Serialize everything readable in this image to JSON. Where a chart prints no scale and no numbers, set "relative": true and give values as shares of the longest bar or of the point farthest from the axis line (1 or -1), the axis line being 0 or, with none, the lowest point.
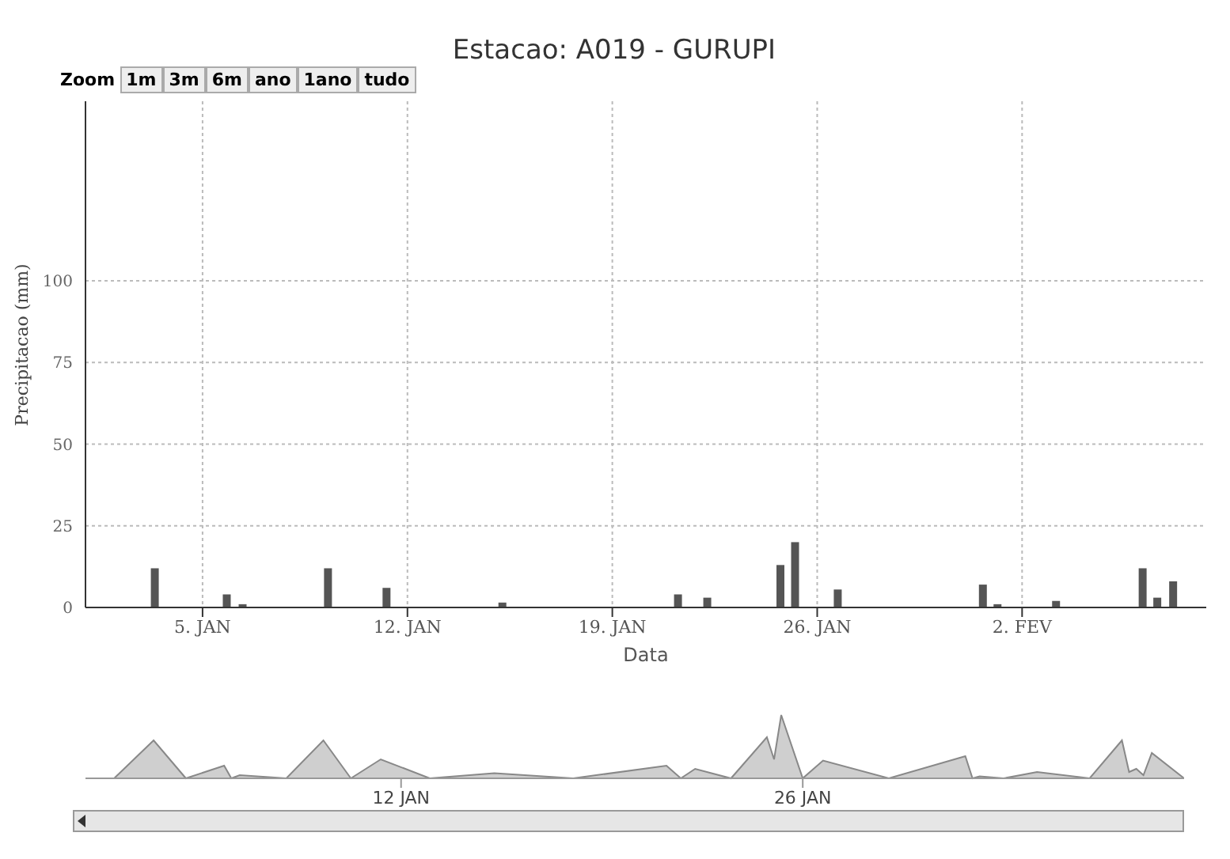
{
  "chart_data": [
    {
      "type": "bar",
      "title": "Estacao: A019 - GURUPI",
      "xlabel": "Data",
      "ylabel": "Precipitacao (mm)",
      "annotations": [
        "Zoom",
        "1m",
        "3m",
        "6m",
        "ano",
        "1ano",
        "tudo"
      ],
      "color": "#555555",
      "grid": true,
      "x": [
        "--01-03T09:00",
        "--01-05T20:00",
        "--01-06T09:00",
        "--01-09T07:00",
        "--01-11T07:00",
        "--01-15T06:00",
        "--01-21T06:00",
        "--01-22T06:00",
        "--01-24T18:00",
        "--01-25T06:00",
        "--01-26T17:00",
        "--01-31T16:00",
        "--02-01T04:00",
        "--02-03T04:00",
        "--02-06T03:00",
        "--02-06T15:00",
        "--02-07T04:00"
      ],
      "values": [
        12,
        4,
        1,
        12,
        6,
        1.5,
        4,
        3,
        13,
        20,
        5.5,
        7,
        1,
        2,
        12,
        3,
        8
      ],
      "xlim": [
        "--01-01T00:00",
        "--02-08T07:00"
      ],
      "xticks": [
        {
          "value": "--01-05",
          "label": "5. JAN"
        },
        {
          "value": "--01-12",
          "label": "12. JAN"
        },
        {
          "value": "--01-19",
          "label": "19. JAN"
        },
        {
          "value": "--01-26",
          "label": "26. JAN"
        },
        {
          "value": "--02-02",
          "label": "2. FEV"
        }
      ],
      "ylim": [
        0,
        155
      ],
      "yticks": [
        0,
        25,
        50,
        75,
        100
      ]
    },
    {
      "type": "area",
      "relative": true,
      "color": "#888888",
      "tick_labels": "x",
      "x": [
        "--01-01T00:00",
        "--01-02T00:00",
        "--01-03T09:00",
        "--01-04T12:00",
        "--01-05T20:00",
        "--01-06T02:00",
        "--01-06T09:00",
        "--01-08T00:00",
        "--01-09T07:00",
        "--01-10T06:00",
        "--01-11T07:00",
        "--01-13T00:00",
        "--01-15T06:00",
        "--01-18T00:00",
        "--01-21T06:00",
        "--01-21T18:00",
        "--01-22T06:00",
        "--01-23T12:00",
        "--01-24T18:00",
        "--01-25T00:00",
        "--01-25T06:00",
        "--01-26T00:00",
        "--01-26T17:00",
        "--01-29T00:00",
        "--01-31T16:00",
        "--01-31T22:00",
        "--02-01T04:00",
        "--02-02T00:00",
        "--02-03T04:00",
        "--02-05T00:00",
        "--02-06T03:00",
        "--02-06T09:00",
        "--02-06T15:00",
        "--02-06T21:00",
        "--02-07T04:00",
        "--02-08T07:00"
      ],
      "values": [
        0,
        0,
        0.6,
        0,
        0.2,
        0,
        0.05,
        0,
        0.6,
        0,
        0.3,
        0,
        0.08,
        0,
        0.2,
        0,
        0.15,
        0,
        0.65,
        0.3,
        1,
        0,
        0.28,
        0,
        0.35,
        0,
        0.03,
        0,
        0.1,
        0,
        0.6,
        0.1,
        0.15,
        0.05,
        0.4,
        0
      ],
      "xlim": [
        "--01-01T00:00",
        "--02-08T07:00"
      ],
      "xticks": [
        {
          "value": "--01-12",
          "label": "12 JAN"
        },
        {
          "value": "--01-26",
          "label": "26 JAN"
        }
      ]
    }
  ]
}
